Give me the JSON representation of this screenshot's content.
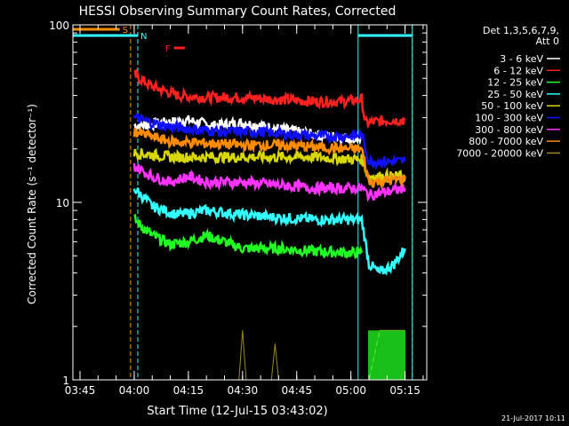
{
  "colors": {
    "background": "#000000",
    "axis": "#ffffff",
    "c3_6": "#ffffff",
    "c6_12": "#ff2020",
    "c12_25": "#22ff22",
    "c25_50": "#33ffff",
    "c50_100": "#d8d800",
    "c100_300": "#1010ff",
    "c300_800": "#ff33ff",
    "c800_7000": "#ff8c00",
    "c7000_20000": "#9a8a20",
    "bar_s": "#ff8c00",
    "bar_n": "#33ffff",
    "bar_f": "#ff2020"
  },
  "chart_data": {
    "type": "line",
    "title": "HESSI Observing Summary Count Rates, Corrected",
    "xlabel": "Start Time (12-Jul-15 03:43:02)",
    "ylabel": "Corrected Count Rate (s⁻¹ detector⁻¹)",
    "x_unit": "UT time (HH:MM), 12-Jul-2015",
    "x_ticks": [
      "03:45",
      "04:00",
      "04:15",
      "04:30",
      "04:45",
      "05:00",
      "05:15"
    ],
    "xlim": [
      "03:43:02",
      "05:21:00"
    ],
    "y_scale": "log",
    "ylim": [
      1,
      100
    ],
    "y_ticks": [
      "1",
      "10",
      "100"
    ],
    "legend_position": "top-right",
    "legend_header": [
      "Det 1,3,5,6,7,9,",
      "Att 0"
    ],
    "grid": false,
    "series": [
      {
        "name": "3 - 6 keV",
        "color_key": "c3_6",
        "points": [
          [
            "04:00",
            27
          ],
          [
            "04:08",
            28
          ],
          [
            "04:15",
            29
          ],
          [
            "04:22",
            27
          ],
          [
            "04:30",
            28
          ],
          [
            "04:40",
            26
          ],
          [
            "04:50",
            24
          ],
          [
            "05:00",
            23
          ],
          [
            "05:03",
            23
          ]
        ]
      },
      {
        "name": "6 - 12 keV",
        "color_key": "c6_12",
        "points": [
          [
            "04:00",
            52
          ],
          [
            "04:05",
            45
          ],
          [
            "04:12",
            40
          ],
          [
            "04:20",
            39
          ],
          [
            "04:30",
            39
          ],
          [
            "04:40",
            38
          ],
          [
            "04:50",
            37
          ],
          [
            "04:58",
            37
          ],
          [
            "05:03",
            38
          ],
          [
            "05:04",
            28
          ],
          [
            "05:10",
            29
          ],
          [
            "05:15",
            29
          ]
        ]
      },
      {
        "name": "12 - 25 keV",
        "color_key": "c12_25",
        "points": [
          [
            "04:00",
            8
          ],
          [
            "04:05",
            6.5
          ],
          [
            "04:10",
            5.8
          ],
          [
            "04:15",
            6
          ],
          [
            "04:20",
            6.5
          ],
          [
            "04:25",
            6
          ],
          [
            "04:30",
            5.5
          ],
          [
            "04:40",
            5.5
          ],
          [
            "04:50",
            5.3
          ],
          [
            "05:00",
            5.2
          ],
          [
            "05:03",
            5.2
          ]
        ]
      },
      {
        "name": "25 - 50 keV",
        "color_key": "c25_50",
        "points": [
          [
            "04:00",
            12
          ],
          [
            "04:05",
            9.5
          ],
          [
            "04:12",
            8.5
          ],
          [
            "04:20",
            9
          ],
          [
            "04:30",
            8.5
          ],
          [
            "04:40",
            8.2
          ],
          [
            "04:50",
            8
          ],
          [
            "05:00",
            8
          ],
          [
            "05:03",
            8
          ],
          [
            "05:05",
            4.5
          ],
          [
            "05:08",
            4
          ],
          [
            "05:12",
            4.5
          ],
          [
            "05:15",
            5.5
          ]
        ]
      },
      {
        "name": "50 - 100 keV",
        "color_key": "c50_100",
        "points": [
          [
            "04:00",
            19
          ],
          [
            "04:10",
            18
          ],
          [
            "04:20",
            18
          ],
          [
            "04:30",
            18
          ],
          [
            "04:40",
            18
          ],
          [
            "04:50",
            18
          ],
          [
            "05:00",
            17.5
          ],
          [
            "05:03",
            17.5
          ],
          [
            "05:05",
            14
          ],
          [
            "05:15",
            14
          ]
        ]
      },
      {
        "name": "100 - 300 keV",
        "color_key": "c100_300",
        "points": [
          [
            "04:00",
            30
          ],
          [
            "04:08",
            27
          ],
          [
            "04:15",
            26
          ],
          [
            "04:25",
            25
          ],
          [
            "04:35",
            25
          ],
          [
            "04:45",
            24
          ],
          [
            "04:55",
            23.5
          ],
          [
            "05:03",
            24
          ],
          [
            "05:05",
            17
          ],
          [
            "05:15",
            17
          ]
        ]
      },
      {
        "name": "300 - 800 keV",
        "color_key": "c300_800",
        "points": [
          [
            "04:00",
            16
          ],
          [
            "04:05",
            14
          ],
          [
            "04:10",
            13
          ],
          [
            "04:15",
            14
          ],
          [
            "04:20",
            13
          ],
          [
            "04:30",
            13
          ],
          [
            "04:40",
            12.5
          ],
          [
            "04:50",
            12
          ],
          [
            "05:00",
            12
          ],
          [
            "05:03",
            12
          ],
          [
            "05:05",
            11
          ],
          [
            "05:15",
            12
          ]
        ]
      },
      {
        "name": "800 - 7000 keV",
        "color_key": "c800_7000",
        "points": [
          [
            "04:00",
            25
          ],
          [
            "04:10",
            22
          ],
          [
            "04:20",
            21.5
          ],
          [
            "04:30",
            21
          ],
          [
            "04:40",
            21
          ],
          [
            "04:50",
            20.5
          ],
          [
            "05:00",
            20
          ],
          [
            "05:03",
            20
          ],
          [
            "05:05",
            13
          ],
          [
            "05:15",
            13.5
          ]
        ]
      },
      {
        "name": "7000 - 20000 keV",
        "color_key": "c7000_20000",
        "points": [
          [
            "04:29",
            1
          ],
          [
            "04:30",
            1.9
          ],
          [
            "04:31",
            1
          ],
          [
            "04:38",
            1
          ],
          [
            "04:39",
            1.6
          ],
          [
            "04:40",
            1
          ],
          [
            "05:05",
            1
          ],
          [
            "05:08",
            1.9
          ],
          [
            "05:12",
            1.9
          ],
          [
            "05:15",
            1.9
          ]
        ]
      }
    ],
    "spike_bursts": [
      {
        "series": "12 - 25 keV",
        "from": "05:05",
        "to": "05:15",
        "base": 1,
        "top": 1.9
      }
    ],
    "flag_bars": [
      {
        "label": "S",
        "color_key": "bar_s",
        "from": "03:43",
        "to": "03:56",
        "level": 1
      },
      {
        "label": "N",
        "color_key": "bar_n",
        "from": "03:43",
        "to": "04:01",
        "level": 2
      },
      {
        "label": "N",
        "color_key": "bar_n",
        "from": "05:02",
        "to": "05:17",
        "level": 2
      },
      {
        "label": "F",
        "color_key": "bar_f",
        "from": "04:11",
        "to": "04:14",
        "level": 4
      }
    ],
    "vertical_lines": [
      {
        "time": "03:59",
        "color_key": "bar_s",
        "dashed": true
      },
      {
        "time": "04:01",
        "color_key": "bar_n",
        "dashed": true
      },
      {
        "time": "05:02",
        "color_key": "bar_n",
        "dashed": false
      },
      {
        "time": "05:17",
        "color_key": "bar_s",
        "dashed": true
      },
      {
        "time": "05:17",
        "color_key": "bar_n",
        "dashed": false
      }
    ],
    "footer_date": "21-Jul-2017 10:11"
  }
}
